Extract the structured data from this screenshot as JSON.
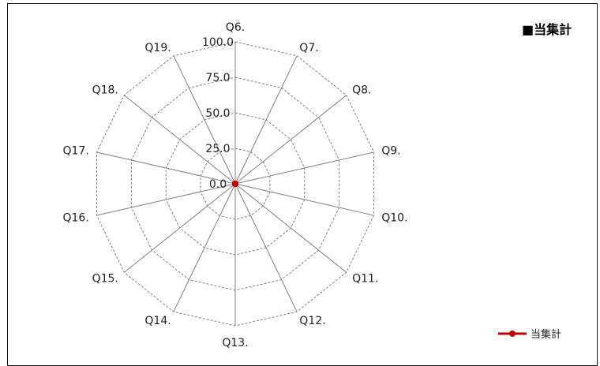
{
  "chart_data": {
    "type": "radar",
    "section_title": "■当集計",
    "categories": [
      "Q6.",
      "Q7.",
      "Q8.",
      "Q9.",
      "Q10.",
      "Q11.",
      "Q12.",
      "Q13.",
      "Q14.",
      "Q15.",
      "Q16.",
      "Q17.",
      "Q18.",
      "Q19."
    ],
    "series": [
      {
        "name": "当集計",
        "values": [
          0,
          0,
          0,
          0,
          0,
          0,
          0,
          0,
          0,
          0,
          0,
          0,
          0,
          0
        ],
        "color": "#c00000"
      }
    ],
    "rlim": [
      0,
      100
    ],
    "ticks": [
      "0.0",
      "25.0",
      "50.0",
      "75.0",
      "100.0"
    ],
    "tick_values": [
      0,
      25,
      50,
      75,
      100
    ],
    "grid": true,
    "legend_position": "bottom-right",
    "colors": {
      "spoke": "#808080",
      "ring": "#808080",
      "series": "#c00000"
    }
  }
}
